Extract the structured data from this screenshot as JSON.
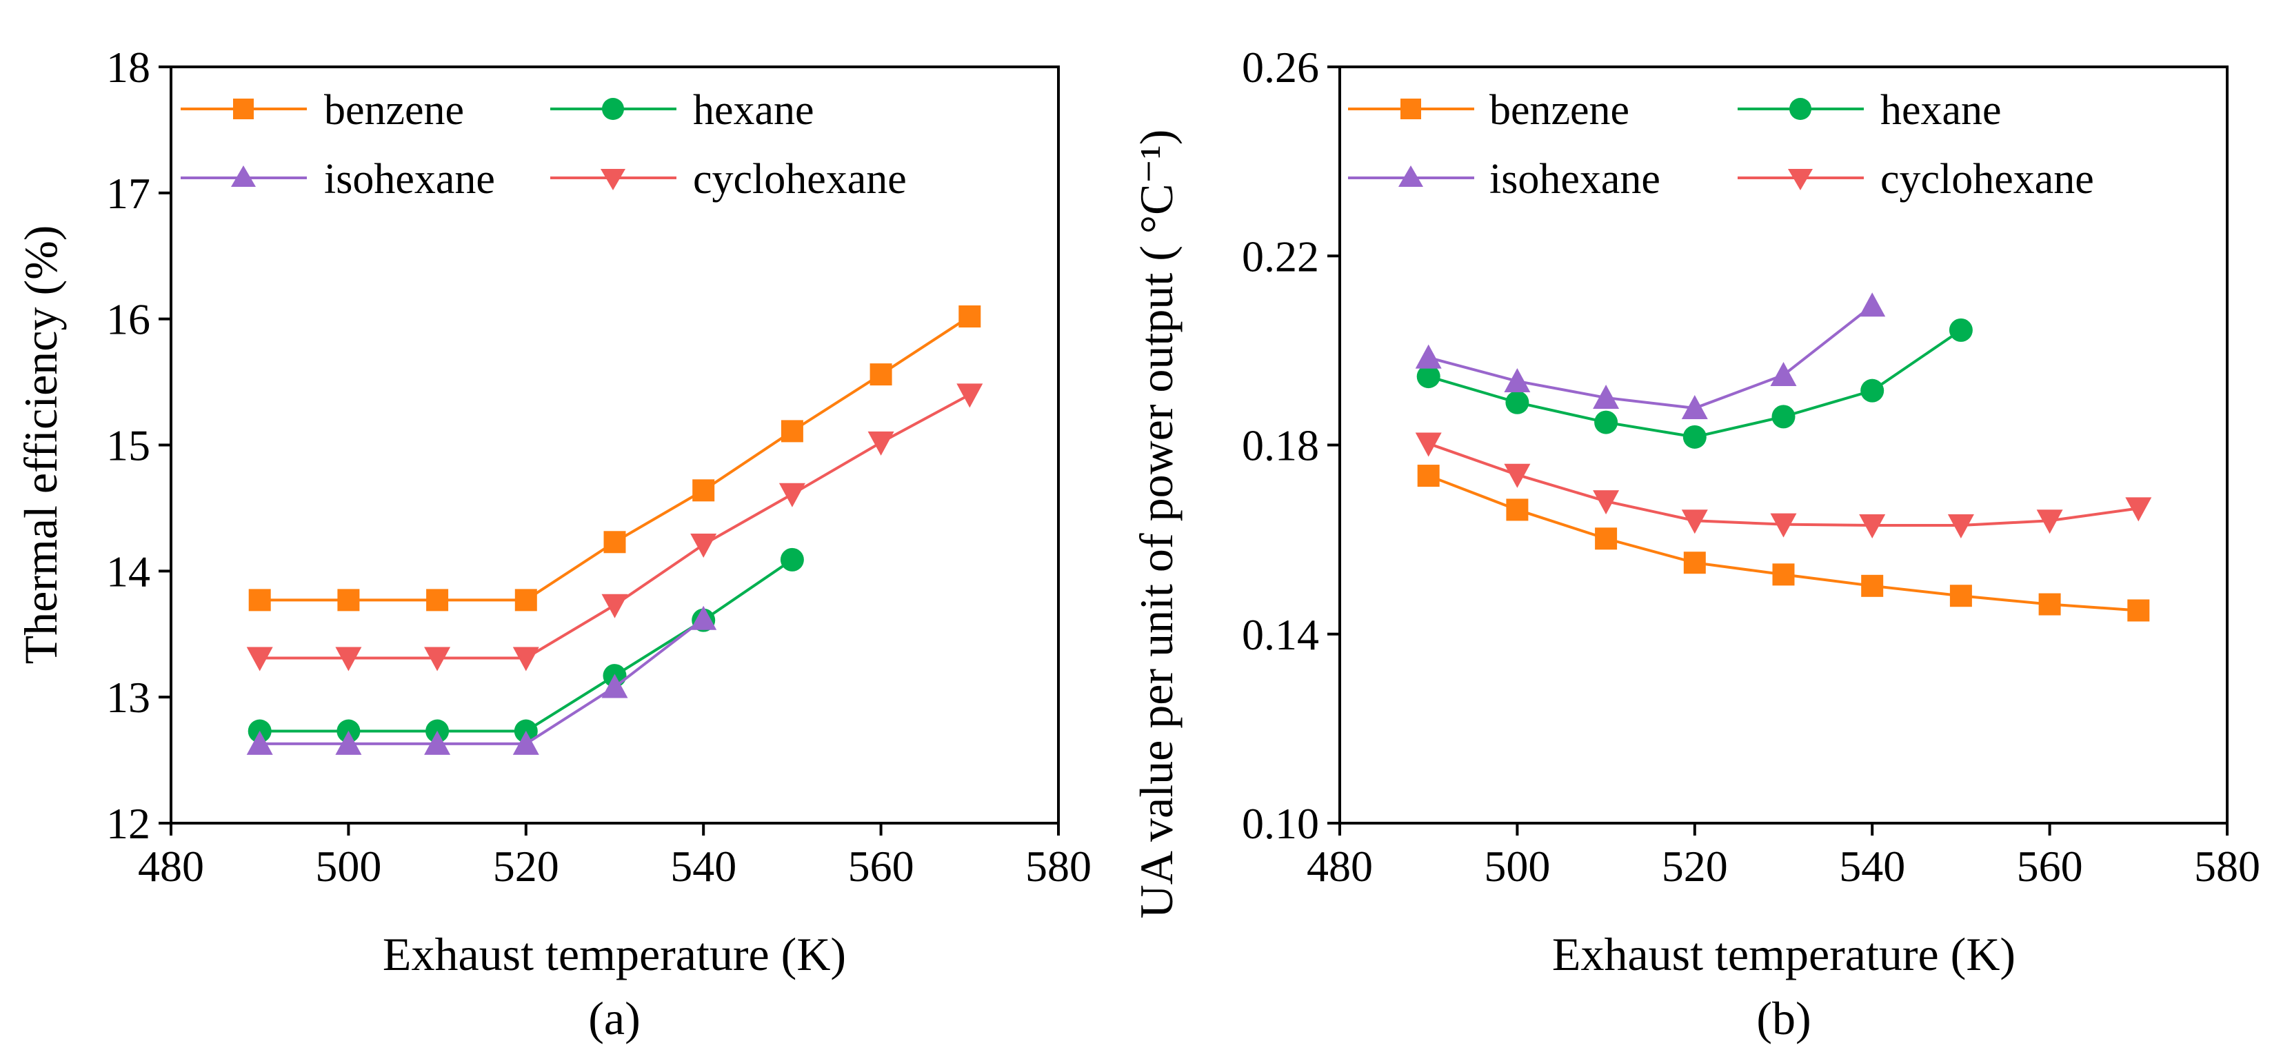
{
  "chart_data": [
    {
      "type": "line",
      "panel_label": "(a)",
      "xlabel": "Exhaust temperature (K)",
      "ylabel": "Thermal efficiency (%)",
      "xlim": [
        480,
        580
      ],
      "ylim": [
        12,
        18
      ],
      "xticks": [
        "480",
        "500",
        "520",
        "540",
        "560",
        "580"
      ],
      "yticks": [
        "12",
        "13",
        "14",
        "15",
        "16",
        "17",
        "18"
      ],
      "legend_position": "top-left",
      "series": [
        {
          "name": "benzene",
          "color": "#ff7f0e",
          "marker": "square",
          "x": [
            490,
            500,
            510,
            520,
            530,
            540,
            550,
            560,
            570
          ],
          "y": [
            13.77,
            13.77,
            13.77,
            13.77,
            14.23,
            14.64,
            15.11,
            15.56,
            16.02
          ]
        },
        {
          "name": "hexane",
          "color": "#00b050",
          "marker": "circle",
          "x": [
            490,
            500,
            510,
            520,
            530,
            540,
            550
          ],
          "y": [
            12.73,
            12.73,
            12.73,
            12.73,
            13.17,
            13.61,
            14.09
          ]
        },
        {
          "name": "isohexane",
          "color": "#9966cc",
          "marker": "triangle-up",
          "x": [
            490,
            500,
            510,
            520,
            530,
            540
          ],
          "y": [
            12.63,
            12.63,
            12.63,
            12.63,
            13.08,
            13.62
          ]
        },
        {
          "name": "cyclohexane",
          "color": "#f05a5a",
          "marker": "triangle-down",
          "x": [
            490,
            500,
            510,
            520,
            530,
            540,
            550,
            560,
            570
          ],
          "y": [
            13.31,
            13.31,
            13.31,
            13.31,
            13.73,
            14.21,
            14.61,
            15.02,
            15.4
          ]
        }
      ]
    },
    {
      "type": "line",
      "panel_label": "(b)",
      "xlabel": "Exhaust temperature (K)",
      "ylabel": "UA value per unit of power output ( °C⁻¹)",
      "xlim": [
        480,
        580
      ],
      "ylim": [
        0.1,
        0.26
      ],
      "xticks": [
        "480",
        "500",
        "520",
        "540",
        "560",
        "580"
      ],
      "yticks": [
        "0.10",
        "0.14",
        "0.18",
        "0.22",
        "0.26"
      ],
      "legend_position": "top-left",
      "series": [
        {
          "name": "benzene",
          "color": "#ff7f0e",
          "marker": "square",
          "x": [
            490,
            500,
            510,
            520,
            530,
            540,
            550,
            560,
            570
          ],
          "y": [
            0.1735,
            0.1663,
            0.1602,
            0.1551,
            0.1526,
            0.1502,
            0.1481,
            0.1463,
            0.145
          ]
        },
        {
          "name": "hexane",
          "color": "#00b050",
          "marker": "circle",
          "x": [
            490,
            500,
            510,
            520,
            530,
            540,
            550
          ],
          "y": [
            0.1945,
            0.189,
            0.1848,
            0.1817,
            0.186,
            0.1915,
            0.2043
          ]
        },
        {
          "name": "isohexane",
          "color": "#9966cc",
          "marker": "triangle-up",
          "x": [
            490,
            500,
            510,
            520,
            530,
            540
          ],
          "y": [
            0.1985,
            0.1935,
            0.19,
            0.1878,
            0.1948,
            0.2095
          ]
        },
        {
          "name": "cyclohexane",
          "color": "#f05a5a",
          "marker": "triangle-down",
          "x": [
            490,
            500,
            510,
            520,
            530,
            540,
            550,
            560,
            570
          ],
          "y": [
            0.1803,
            0.1737,
            0.1681,
            0.164,
            0.1632,
            0.163,
            0.163,
            0.164,
            0.1666
          ]
        }
      ]
    }
  ]
}
